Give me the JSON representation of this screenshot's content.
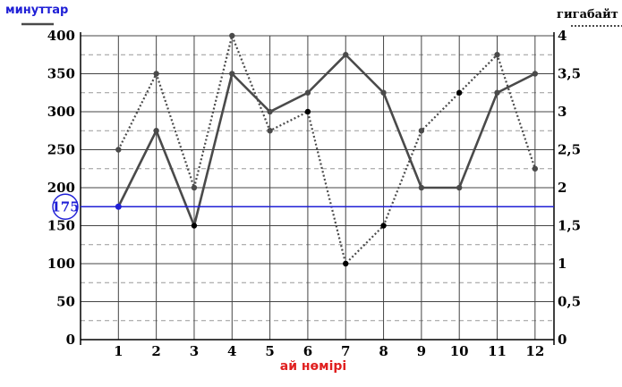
{
  "chart_data": {
    "type": "line",
    "title": "",
    "x": [
      1,
      2,
      3,
      4,
      5,
      6,
      7,
      8,
      9,
      10,
      11,
      12
    ],
    "x_ticks": [
      "1",
      "2",
      "3",
      "4",
      "5",
      "6",
      "7",
      "8",
      "9",
      "10",
      "11",
      "12"
    ],
    "xlabel": "ай нөмірі",
    "ylabel_left": "минуттар",
    "ylabel_right": "гигабайт",
    "ylim_left": [
      0,
      400
    ],
    "ylim_right": [
      0,
      4
    ],
    "left_ticks": [
      "0",
      "50",
      "100",
      "150",
      "200",
      "250",
      "300",
      "350",
      "400"
    ],
    "right_ticks": [
      "0",
      "0,5",
      "1",
      "1,5",
      "2",
      "2,5",
      "3",
      "3,5",
      "4"
    ],
    "grid": true,
    "series": [
      {
        "axis": "left",
        "style": "solid",
        "color": "#4a4a4a",
        "values": [
          175,
          275,
          150,
          350,
          300,
          325,
          375,
          325,
          200,
          200,
          325,
          350
        ]
      },
      {
        "axis": "right",
        "style": "dotted",
        "color": "#4a4a4a",
        "values": [
          2.5,
          3.5,
          2,
          4,
          2.75,
          3,
          1,
          1.5,
          2.75,
          3.25,
          3.75,
          2.25
        ]
      }
    ],
    "reference_line": {
      "axis": "left",
      "value": 175,
      "label": "175",
      "color": "#1f1fd6"
    },
    "highlight_points": [
      {
        "series": 0,
        "x": 3
      },
      {
        "series": 1,
        "x": 6
      },
      {
        "series": 1,
        "x": 7
      },
      {
        "series": 1,
        "x": 8
      },
      {
        "series": 1,
        "x": 10
      }
    ]
  }
}
